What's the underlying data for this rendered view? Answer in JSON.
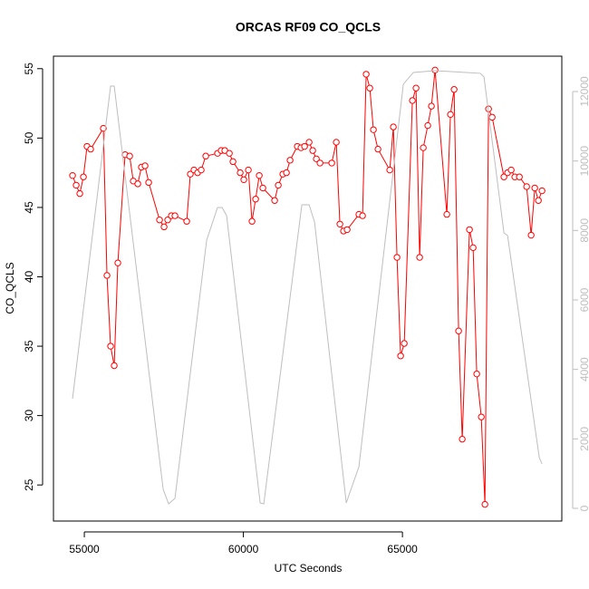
{
  "chart_data": {
    "type": "line",
    "title": "ORCAS RF09 CO_QCLS",
    "xlabel": "UTC Seconds",
    "ylabel": "CO_QCLS",
    "xlim": [
      54030,
      70010
    ],
    "xticks": [
      55000,
      60000,
      65000
    ],
    "ylim": [
      22.4,
      55.9
    ],
    "yticks": [
      25,
      30,
      35,
      40,
      45,
      50,
      55
    ],
    "y2lim": [
      -365,
      13017
    ],
    "y2ticks": [
      0,
      2000,
      4000,
      6000,
      8000,
      10000,
      12000
    ],
    "y2color": "#bebebe",
    "series": [
      {
        "color": "#ff0000",
        "marker": "circle",
        "x": [
          54630,
          54744,
          54858,
          54972,
          55085,
          55199,
          55598,
          55712,
          55826,
          55940,
          56054,
          56282,
          56425,
          56539,
          56681,
          56795,
          56909,
          57023,
          57365,
          57507,
          57621,
          57735,
          57849,
          58219,
          58333,
          58447,
          58561,
          58675,
          58818,
          59188,
          59302,
          59416,
          59559,
          59673,
          59900,
          60014,
          60157,
          60271,
          60385,
          60499,
          60613,
          60983,
          61097,
          61240,
          61354,
          61468,
          61696,
          61810,
          61924,
          62066,
          62180,
          62294,
          62408,
          62778,
          62920,
          63034,
          63148,
          63262,
          63632,
          63746,
          63860,
          63974,
          64088,
          64231,
          64601,
          64715,
          64829,
          64943,
          65057,
          65313,
          65427,
          65541,
          65655,
          65797,
          65911,
          66025,
          66396,
          66510,
          66624,
          66766,
          66880,
          67108,
          67222,
          67336,
          67479,
          67593,
          67707,
          67821,
          68191,
          68305,
          68419,
          68533,
          68676,
          68904,
          69046,
          69160,
          69274,
          69388
        ],
        "values": [
          47.3,
          46.6,
          46.0,
          47.2,
          49.4,
          49.2,
          50.7,
          40.1,
          35.0,
          33.6,
          41.0,
          48.8,
          48.7,
          46.9,
          46.7,
          47.9,
          48.0,
          46.8,
          44.1,
          43.6,
          44.1,
          44.4,
          44.4,
          44.0,
          47.4,
          47.7,
          47.5,
          47.7,
          48.7,
          48.9,
          49.1,
          49.1,
          48.9,
          48.3,
          47.5,
          47.0,
          47.7,
          44.0,
          45.6,
          47.3,
          46.4,
          45.5,
          46.6,
          47.4,
          47.5,
          48.4,
          49.4,
          49.3,
          49.4,
          49.7,
          49.1,
          48.5,
          48.2,
          48.2,
          49.7,
          43.8,
          43.3,
          43.4,
          44.5,
          44.4,
          54.6,
          53.6,
          50.6,
          49.2,
          47.7,
          50.8,
          41.4,
          34.3,
          35.2,
          52.7,
          53.6,
          41.4,
          49.3,
          50.9,
          52.3,
          54.9,
          44.5,
          51.7,
          53.5,
          36.1,
          28.3,
          43.4,
          42.1,
          33.0,
          29.9,
          23.6,
          52.1,
          51.5,
          47.2,
          47.5,
          47.7,
          47.2,
          47.2,
          46.5,
          43.0,
          46.4,
          45.5,
          46.2
        ]
      },
      {
        "color": "#bebebe",
        "axis": "y2",
        "x": [
          54630,
          55826,
          55940,
          57479,
          57650,
          57849,
          58846,
          59188,
          59331,
          59473,
          60527,
          60641,
          61838,
          62066,
          62237,
          63234,
          63632,
          65028,
          65342,
          66025,
          67450,
          67564,
          68191,
          68305,
          69302,
          69388
        ],
        "values": [
          3157,
          12157,
          12157,
          548,
          130,
          287,
          7722,
          8661,
          8661,
          8427,
          157,
          130,
          8740,
          8740,
          8244,
          157,
          1200,
          12210,
          12549,
          12601,
          12523,
          12418,
          7931,
          7853,
          1461,
          1278
        ]
      }
    ]
  }
}
